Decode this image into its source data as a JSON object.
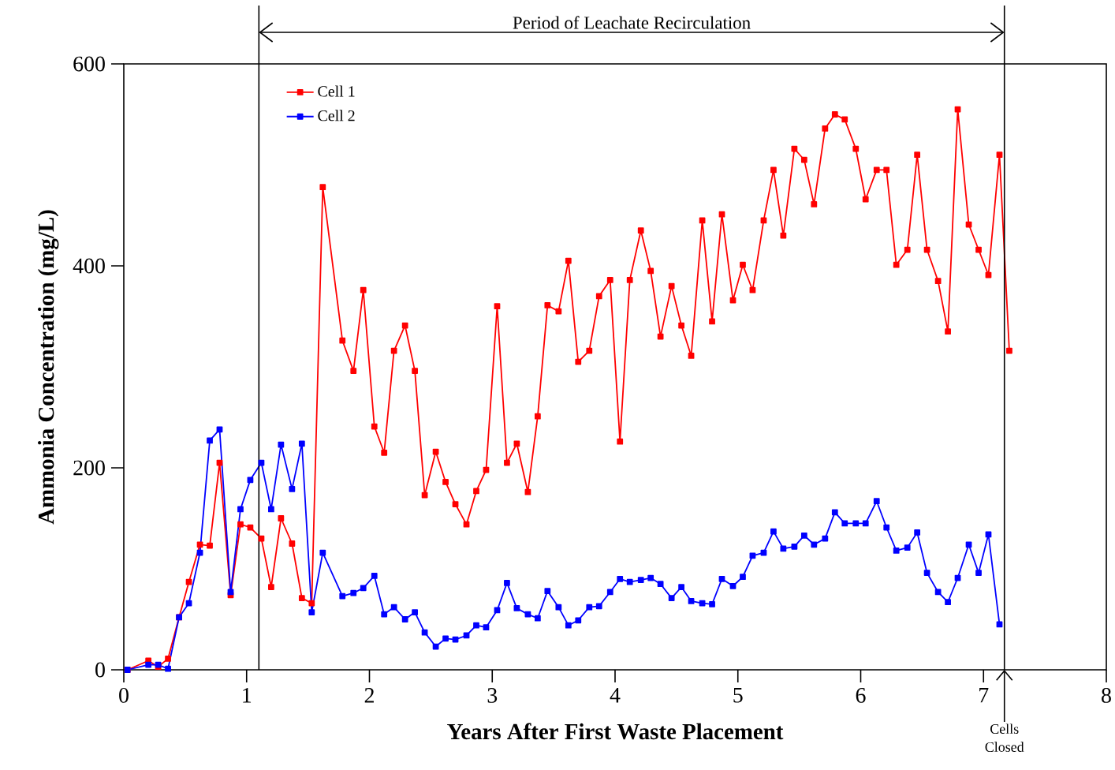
{
  "chart_data": {
    "type": "line",
    "xlabel": "Years After First Waste Placement",
    "ylabel": "Ammonia Concentration (mg/L)",
    "xlim": [
      0,
      8
    ],
    "ylim": [
      0,
      600
    ],
    "xticks": [
      0,
      1,
      2,
      3,
      4,
      5,
      6,
      7,
      8
    ],
    "yticks": [
      0,
      200,
      400,
      600
    ],
    "marker": "square",
    "legend": "top left",
    "annotations": [
      "Period of Leachate Recirculation"
    ],
    "ref_lines": [
      {
        "axis": "x",
        "value": 1.1,
        "label": null,
        "color": "#000000"
      },
      {
        "axis": "x",
        "value": 7.17,
        "label": "Cells Closed",
        "color": "#000000"
      }
    ],
    "series": [
      {
        "name": "Cell 1",
        "color": "#ff0000",
        "x": [
          0.03,
          0.2,
          0.28,
          0.36,
          0.45,
          0.53,
          0.62,
          0.7,
          0.78,
          0.87,
          0.95,
          1.03,
          1.12,
          1.2,
          1.28,
          1.37,
          1.45,
          1.53,
          1.62,
          1.78,
          1.87,
          1.95,
          2.04,
          2.12,
          2.2,
          2.29,
          2.37,
          2.45,
          2.54,
          2.62,
          2.7,
          2.79,
          2.87,
          2.95,
          3.04,
          3.12,
          3.2,
          3.29,
          3.37,
          3.45,
          3.54,
          3.62,
          3.7,
          3.79,
          3.87,
          3.96,
          4.04,
          4.12,
          4.21,
          4.29,
          4.37,
          4.46,
          4.54,
          4.62,
          4.71,
          4.79,
          4.87,
          4.96,
          5.04,
          5.12,
          5.21,
          5.29,
          5.37,
          5.46,
          5.54,
          5.62,
          5.71,
          5.79,
          5.87,
          5.96,
          6.04,
          6.13,
          6.21,
          6.29,
          6.38,
          6.46,
          6.54,
          6.63,
          6.71,
          6.79,
          6.88,
          6.96,
          7.04,
          7.13,
          7.21
        ],
        "values": [
          0,
          9,
          3,
          11,
          52,
          87,
          124,
          123,
          205,
          74,
          144,
          141,
          130,
          82,
          150,
          125,
          71,
          66,
          478,
          326,
          296,
          376,
          241,
          215,
          316,
          341,
          296,
          173,
          216,
          186,
          164,
          144,
          177,
          198,
          360,
          205,
          224,
          176,
          251,
          361,
          355,
          405,
          305,
          316,
          370,
          386,
          226,
          386,
          435,
          395,
          330,
          380,
          341,
          311,
          445,
          345,
          451,
          366,
          401,
          376,
          445,
          495,
          430,
          516,
          505,
          461,
          536,
          550,
          545,
          516,
          466,
          495,
          495,
          401,
          416,
          510,
          416,
          385,
          335,
          555,
          441,
          416,
          391,
          510,
          316
        ]
      },
      {
        "name": "Cell 2",
        "color": "#0000ff",
        "x": [
          0.03,
          0.2,
          0.28,
          0.36,
          0.45,
          0.53,
          0.62,
          0.7,
          0.78,
          0.87,
          0.95,
          1.03,
          1.12,
          1.2,
          1.28,
          1.37,
          1.45,
          1.53,
          1.62,
          1.78,
          1.87,
          1.95,
          2.04,
          2.12,
          2.2,
          2.29,
          2.37,
          2.45,
          2.54,
          2.62,
          2.7,
          2.79,
          2.87,
          2.95,
          3.04,
          3.12,
          3.2,
          3.29,
          3.37,
          3.45,
          3.54,
          3.62,
          3.7,
          3.79,
          3.87,
          3.96,
          4.04,
          4.12,
          4.21,
          4.29,
          4.37,
          4.46,
          4.54,
          4.62,
          4.71,
          4.79,
          4.87,
          4.96,
          5.04,
          5.12,
          5.21,
          5.29,
          5.37,
          5.46,
          5.54,
          5.62,
          5.71,
          5.79,
          5.87,
          5.96,
          6.04,
          6.13,
          6.21,
          6.29,
          6.38,
          6.46,
          6.54,
          6.63,
          6.71,
          6.79,
          6.88,
          6.96,
          7.04,
          7.13
        ],
        "values": [
          0,
          5,
          5,
          1,
          52,
          66,
          116,
          227,
          238,
          77,
          159,
          188,
          205,
          159,
          223,
          179,
          224,
          57,
          116,
          73,
          76,
          81,
          93,
          55,
          62,
          50,
          57,
          37,
          23,
          31,
          30,
          34,
          44,
          42,
          59,
          86,
          61,
          55,
          51,
          78,
          62,
          44,
          49,
          62,
          63,
          77,
          90,
          87,
          89,
          91,
          85,
          71,
          82,
          68,
          66,
          65,
          90,
          83,
          92,
          113,
          116,
          137,
          120,
          122,
          133,
          124,
          130,
          156,
          145,
          145,
          145,
          167,
          141,
          118,
          121,
          136,
          96,
          77,
          67,
          91,
          124,
          96,
          134,
          45
        ]
      }
    ]
  }
}
